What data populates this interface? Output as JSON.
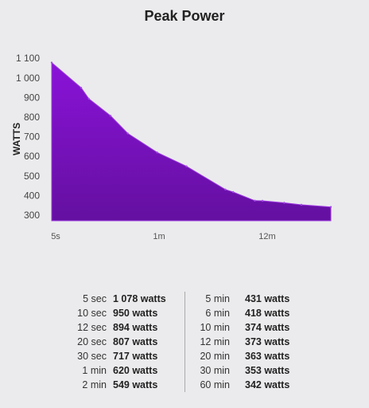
{
  "title": "Peak Power",
  "chart_data": {
    "type": "area",
    "title": "Peak Power",
    "ylabel": "WATTS",
    "xlabel": "",
    "y_ticks": [
      "300",
      "400",
      "500",
      "600",
      "700",
      "800",
      "900",
      "1 000",
      "1 100"
    ],
    "y_tick_values": [
      300,
      400,
      500,
      600,
      700,
      800,
      900,
      1000,
      1100
    ],
    "x_ticks": [
      "5s",
      "1m",
      "12m"
    ],
    "ylim": [
      270,
      1120
    ],
    "series": [
      {
        "points": [
          {
            "x": "5 sec",
            "y": 1078
          },
          {
            "x": "10 sec",
            "y": 950
          },
          {
            "x": "12 sec",
            "y": 894
          },
          {
            "x": "20 sec",
            "y": 807
          },
          {
            "x": "30 sec",
            "y": 717
          },
          {
            "x": "1 min",
            "y": 620
          },
          {
            "x": "2 min",
            "y": 549
          },
          {
            "x": "5 min",
            "y": 431
          },
          {
            "x": "6 min",
            "y": 418
          },
          {
            "x": "10 min",
            "y": 374
          },
          {
            "x": "12 min",
            "y": 373
          },
          {
            "x": "20 min",
            "y": 363
          },
          {
            "x": "30 min",
            "y": 353
          },
          {
            "x": "60 min",
            "y": 342
          }
        ]
      }
    ],
    "fill_color_top": "#8a12d8",
    "fill_color_bottom": "#6410a0",
    "grid": false
  },
  "table": {
    "left": [
      {
        "duration": "5 sec",
        "power": "1 078 watts"
      },
      {
        "duration": "10 sec",
        "power": "950 watts"
      },
      {
        "duration": "12 sec",
        "power": "894 watts"
      },
      {
        "duration": "20 sec",
        "power": "807 watts"
      },
      {
        "duration": "30 sec",
        "power": "717 watts"
      },
      {
        "duration": "1 min",
        "power": "620 watts"
      },
      {
        "duration": "2 min",
        "power": "549 watts"
      }
    ],
    "right": [
      {
        "duration": "5 min",
        "power": "431 watts"
      },
      {
        "duration": "6 min",
        "power": "418 watts"
      },
      {
        "duration": "10 min",
        "power": "374 watts"
      },
      {
        "duration": "12 min",
        "power": "373 watts"
      },
      {
        "duration": "20 min",
        "power": "363 watts"
      },
      {
        "duration": "30 min",
        "power": "353 watts"
      },
      {
        "duration": "60 min",
        "power": "342 watts"
      }
    ]
  }
}
